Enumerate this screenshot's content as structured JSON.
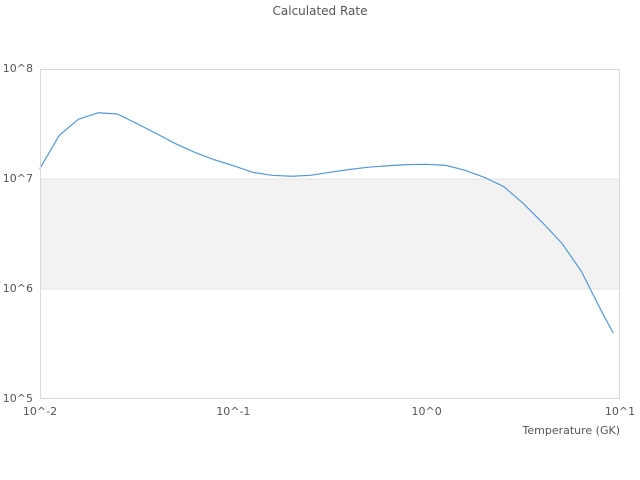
{
  "chart_data": {
    "type": "line",
    "title": "Calculated Rate",
    "xlabel": "Temperature (GK)",
    "ylabel": "",
    "x_scale": "log",
    "y_scale": "log",
    "xlim": [
      0.01,
      10
    ],
    "ylim": [
      100000.0,
      100000000.0
    ],
    "grid": "off",
    "legend": "none",
    "x_ticks": [
      {
        "label": "10^-2",
        "value": 0.01
      },
      {
        "label": "10^-1",
        "value": 0.1
      },
      {
        "label": "10^0",
        "value": 1
      },
      {
        "label": "10^1",
        "value": 10
      }
    ],
    "y_ticks": [
      {
        "label": "10^5",
        "value": 100000.0
      },
      {
        "label": "10^6",
        "value": 1000000.0
      },
      {
        "label": "10^7",
        "value": 10000000.0
      },
      {
        "label": "10^8",
        "value": 100000000.0
      }
    ],
    "highlight_band": {
      "y_from": 1000000.0,
      "y_to": 10000000.0,
      "color": "#f2f2f2",
      "edge_color": "#e3e3e3"
    },
    "series": [
      {
        "name": "calculated-rate",
        "color": "#5598d8",
        "x": [
          0.01,
          0.0126,
          0.0158,
          0.02,
          0.0251,
          0.0316,
          0.0398,
          0.0501,
          0.0631,
          0.0794,
          0.1,
          0.126,
          0.158,
          0.2,
          0.251,
          0.316,
          0.398,
          0.501,
          0.631,
          0.794,
          1.0,
          1.26,
          1.58,
          2.0,
          2.51,
          3.16,
          3.98,
          5.01,
          6.31,
          7.94,
          9.2
        ],
        "y": [
          12500000.0,
          25000000.0,
          35000000.0,
          40000000.0,
          39000000.0,
          32000000.0,
          26000000.0,
          21000000.0,
          17500000.0,
          15000000.0,
          13200000.0,
          11500000.0,
          10800000.0,
          10600000.0,
          10800000.0,
          11500000.0,
          12200000.0,
          12800000.0,
          13200000.0,
          13500000.0,
          13600000.0,
          13300000.0,
          12000000.0,
          10300000.0,
          8500000.0,
          6000000.0,
          4000000.0,
          2600000.0,
          1450000.0,
          650000.0,
          400000.0
        ]
      }
    ],
    "colors": {
      "plot_border": "#d9d9d9",
      "text": "#555555",
      "background": "#ffffff"
    }
  }
}
